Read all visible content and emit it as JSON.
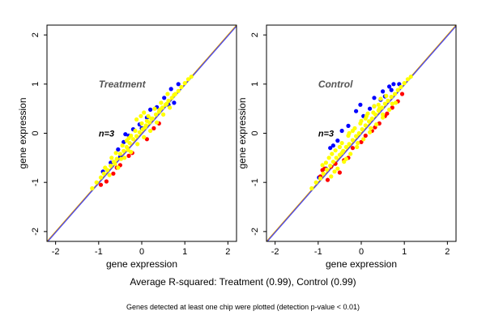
{
  "chart_data": [
    {
      "type": "scatter",
      "title": "Treatment",
      "annotation": "n=3",
      "xlabel": "gene expression",
      "ylabel": "gene expression",
      "xlim": [
        -2.2,
        2.2
      ],
      "ylim": [
        -2.2,
        2.2
      ],
      "xticks": [
        -2,
        -1,
        0,
        1,
        2
      ],
      "yticks": [
        -2,
        -1,
        0,
        1,
        2
      ],
      "reference_lines": [
        {
          "name": "identity",
          "slope": 1,
          "intercept": 0,
          "color": "#e0a000"
        },
        {
          "name": "fit",
          "slope": 1,
          "intercept": -0.02,
          "color": "#4040ff"
        }
      ],
      "series": [
        {
          "color": "#0000ff",
          "points": [
            [
              -0.72,
              -0.6
            ],
            [
              -0.55,
              -0.33
            ],
            [
              -0.42,
              -0.18
            ],
            [
              -0.3,
              -0.05
            ],
            [
              -0.05,
              0.18
            ],
            [
              0.12,
              0.32
            ],
            [
              0.35,
              0.53
            ],
            [
              0.52,
              0.72
            ],
            [
              0.68,
              0.9
            ],
            [
              0.85,
              1.0
            ],
            [
              -0.9,
              -0.78
            ],
            [
              0.0,
              0.1
            ],
            [
              -0.38,
              -0.02
            ],
            [
              0.2,
              0.48
            ],
            [
              0.62,
              0.58
            ],
            [
              0.75,
              0.62
            ],
            [
              -0.2,
              0.08
            ],
            [
              -0.5,
              -0.48
            ]
          ]
        },
        {
          "color": "#ff0000",
          "points": [
            [
              -0.95,
              -1.05
            ],
            [
              -0.82,
              -0.98
            ],
            [
              -0.66,
              -0.82
            ],
            [
              -0.5,
              -0.65
            ],
            [
              -0.3,
              -0.46
            ],
            [
              0.12,
              -0.12
            ],
            [
              0.28,
              0.1
            ],
            [
              -0.22,
              -0.4
            ],
            [
              -0.58,
              -0.7
            ],
            [
              0.4,
              0.2
            ]
          ]
        },
        {
          "color": "#ffff00",
          "points": [
            [
              -1.15,
              -1.12
            ],
            [
              -1.05,
              -1.0
            ],
            [
              -0.95,
              -0.9
            ],
            [
              -0.88,
              -0.82
            ],
            [
              -0.8,
              -0.75
            ],
            [
              -0.72,
              -0.66
            ],
            [
              -0.65,
              -0.58
            ],
            [
              -0.58,
              -0.52
            ],
            [
              -0.5,
              -0.42
            ],
            [
              -0.42,
              -0.36
            ],
            [
              -0.35,
              -0.28
            ],
            [
              -0.28,
              -0.2
            ],
            [
              -0.2,
              -0.12
            ],
            [
              -0.12,
              -0.06
            ],
            [
              -0.05,
              0.02
            ],
            [
              0.02,
              0.08
            ],
            [
              0.1,
              0.16
            ],
            [
              0.18,
              0.22
            ],
            [
              0.25,
              0.3
            ],
            [
              0.33,
              0.38
            ],
            [
              0.4,
              0.44
            ],
            [
              0.48,
              0.52
            ],
            [
              0.55,
              0.58
            ],
            [
              0.62,
              0.66
            ],
            [
              0.7,
              0.72
            ],
            [
              0.78,
              0.8
            ],
            [
              0.85,
              0.86
            ],
            [
              0.92,
              0.94
            ],
            [
              1.0,
              1.02
            ],
            [
              1.08,
              1.1
            ],
            [
              1.15,
              1.15
            ],
            [
              -0.7,
              -0.5
            ],
            [
              -0.6,
              -0.4
            ],
            [
              -0.45,
              -0.25
            ],
            [
              -0.3,
              -0.1
            ],
            [
              -0.15,
              0.05
            ],
            [
              0.0,
              0.2
            ],
            [
              0.15,
              0.35
            ],
            [
              0.3,
              0.5
            ],
            [
              0.45,
              0.62
            ],
            [
              0.6,
              0.8
            ],
            [
              -0.75,
              -0.85
            ],
            [
              -0.55,
              -0.7
            ],
            [
              -0.4,
              -0.5
            ],
            [
              -0.25,
              -0.38
            ],
            [
              -0.1,
              -0.22
            ],
            [
              0.05,
              -0.08
            ],
            [
              0.2,
              0.05
            ],
            [
              0.35,
              0.22
            ],
            [
              0.5,
              0.38
            ],
            [
              0.65,
              0.52
            ],
            [
              -0.85,
              -0.7
            ],
            [
              -0.62,
              -0.62
            ],
            [
              -0.48,
              -0.52
            ],
            [
              -0.32,
              -0.34
            ],
            [
              0.08,
              0.12
            ],
            [
              0.22,
              0.3
            ],
            [
              0.42,
              0.48
            ],
            [
              0.58,
              0.6
            ],
            [
              0.75,
              0.78
            ],
            [
              -0.02,
              0.35
            ],
            [
              0.05,
              0.42
            ],
            [
              -0.12,
              0.28
            ],
            [
              0.12,
              0.25
            ],
            [
              -0.25,
              -0.05
            ],
            [
              -0.35,
              -0.15
            ]
          ]
        }
      ]
    },
    {
      "type": "scatter",
      "title": "Control",
      "annotation": "n=3",
      "xlabel": "gene expression",
      "ylabel": "gene expression",
      "xlim": [
        -2.2,
        2.2
      ],
      "ylim": [
        -2.2,
        2.2
      ],
      "xticks": [
        -2,
        -1,
        0,
        1,
        2
      ],
      "yticks": [
        -2,
        -1,
        0,
        1,
        2
      ],
      "reference_lines": [
        {
          "name": "identity",
          "slope": 1,
          "intercept": 0,
          "color": "#e0a000"
        },
        {
          "name": "fit",
          "slope": 1,
          "intercept": -0.02,
          "color": "#4040ff"
        }
      ],
      "series": [
        {
          "color": "#0000ff",
          "points": [
            [
              -0.65,
              -0.25
            ],
            [
              -0.72,
              -0.3
            ],
            [
              -0.45,
              0.05
            ],
            [
              -0.12,
              0.45
            ],
            [
              -0.02,
              0.58
            ],
            [
              0.3,
              0.72
            ],
            [
              0.5,
              0.85
            ],
            [
              0.65,
              0.95
            ],
            [
              0.75,
              1.0
            ],
            [
              0.7,
              0.88
            ],
            [
              -0.3,
              0.15
            ],
            [
              0.05,
              0.35
            ],
            [
              0.2,
              0.5
            ],
            [
              0.45,
              0.68
            ],
            [
              -0.55,
              -0.15
            ],
            [
              0.3,
              0.55
            ],
            [
              0.55,
              0.75
            ],
            [
              0.88,
              1.0
            ],
            [
              -0.98,
              -0.9
            ],
            [
              -0.82,
              -0.72
            ]
          ]
        },
        {
          "color": "#ff0000",
          "points": [
            [
              -0.95,
              -0.88
            ],
            [
              -0.9,
              -0.75
            ],
            [
              -0.85,
              -0.72
            ],
            [
              -0.7,
              -0.68
            ],
            [
              -0.6,
              -0.62
            ],
            [
              -0.4,
              -0.55
            ],
            [
              -0.2,
              -0.3
            ],
            [
              0.1,
              -0.05
            ],
            [
              0.25,
              0.05
            ],
            [
              0.42,
              0.2
            ],
            [
              0.55,
              0.35
            ],
            [
              0.72,
              0.52
            ],
            [
              0.85,
              0.65
            ],
            [
              0.95,
              0.8
            ],
            [
              -0.78,
              -0.95
            ],
            [
              -0.5,
              -0.8
            ],
            [
              -0.3,
              -0.5
            ],
            [
              0.0,
              -0.18
            ],
            [
              0.32,
              0.12
            ],
            [
              0.6,
              0.4
            ]
          ]
        },
        {
          "color": "#ffff00",
          "points": [
            [
              -1.15,
              -1.12
            ],
            [
              -1.05,
              -1.0
            ],
            [
              -0.95,
              -0.92
            ],
            [
              -0.88,
              -0.82
            ],
            [
              -0.8,
              -0.74
            ],
            [
              -0.72,
              -0.66
            ],
            [
              -0.65,
              -0.58
            ],
            [
              -0.58,
              -0.5
            ],
            [
              -0.5,
              -0.44
            ],
            [
              -0.42,
              -0.36
            ],
            [
              -0.35,
              -0.28
            ],
            [
              -0.28,
              -0.22
            ],
            [
              -0.2,
              -0.14
            ],
            [
              -0.12,
              -0.06
            ],
            [
              -0.05,
              0.0
            ],
            [
              0.02,
              0.08
            ],
            [
              0.1,
              0.16
            ],
            [
              0.18,
              0.24
            ],
            [
              0.25,
              0.3
            ],
            [
              0.33,
              0.38
            ],
            [
              0.4,
              0.46
            ],
            [
              0.48,
              0.52
            ],
            [
              0.55,
              0.6
            ],
            [
              0.62,
              0.66
            ],
            [
              0.7,
              0.74
            ],
            [
              0.78,
              0.8
            ],
            [
              0.85,
              0.88
            ],
            [
              0.92,
              0.94
            ],
            [
              1.0,
              1.02
            ],
            [
              1.08,
              1.1
            ],
            [
              1.15,
              1.15
            ],
            [
              -0.9,
              -0.65
            ],
            [
              -0.75,
              -0.5
            ],
            [
              -0.6,
              -0.35
            ],
            [
              -0.45,
              -0.2
            ],
            [
              -0.3,
              -0.05
            ],
            [
              -0.15,
              0.1
            ],
            [
              0.0,
              0.25
            ],
            [
              0.15,
              0.4
            ],
            [
              0.3,
              0.55
            ],
            [
              0.45,
              0.7
            ],
            [
              -0.7,
              -0.88
            ],
            [
              -0.55,
              -0.72
            ],
            [
              -0.4,
              -0.58
            ],
            [
              -0.25,
              -0.42
            ],
            [
              -0.1,
              -0.28
            ],
            [
              0.05,
              -0.12
            ],
            [
              0.2,
              0.02
            ],
            [
              0.35,
              0.18
            ],
            [
              0.5,
              0.32
            ],
            [
              0.65,
              0.48
            ],
            [
              0.8,
              0.62
            ],
            [
              -0.82,
              -0.6
            ],
            [
              -0.68,
              -0.42
            ],
            [
              -0.5,
              -0.28
            ],
            [
              -0.2,
              0.05
            ],
            [
              0.1,
              0.3
            ],
            [
              0.4,
              0.58
            ],
            [
              0.58,
              0.76
            ],
            [
              -0.62,
              -0.78
            ],
            [
              -0.35,
              -0.52
            ],
            [
              -0.08,
              -0.2
            ],
            [
              0.22,
              0.1
            ],
            [
              0.5,
              0.38
            ],
            [
              0.72,
              0.6
            ],
            [
              -0.02,
              0.2
            ],
            [
              0.12,
              0.35
            ],
            [
              -0.28,
              0.0
            ],
            [
              0.28,
              0.42
            ],
            [
              -0.45,
              -0.4
            ],
            [
              0.42,
              0.5
            ]
          ]
        }
      ]
    }
  ],
  "caption": {
    "main": "Average R-squared: Treatment (0.99), Control (0.99)",
    "sub": "Genes detected at least one chip were plotted (detection p-value < 0.01)"
  }
}
